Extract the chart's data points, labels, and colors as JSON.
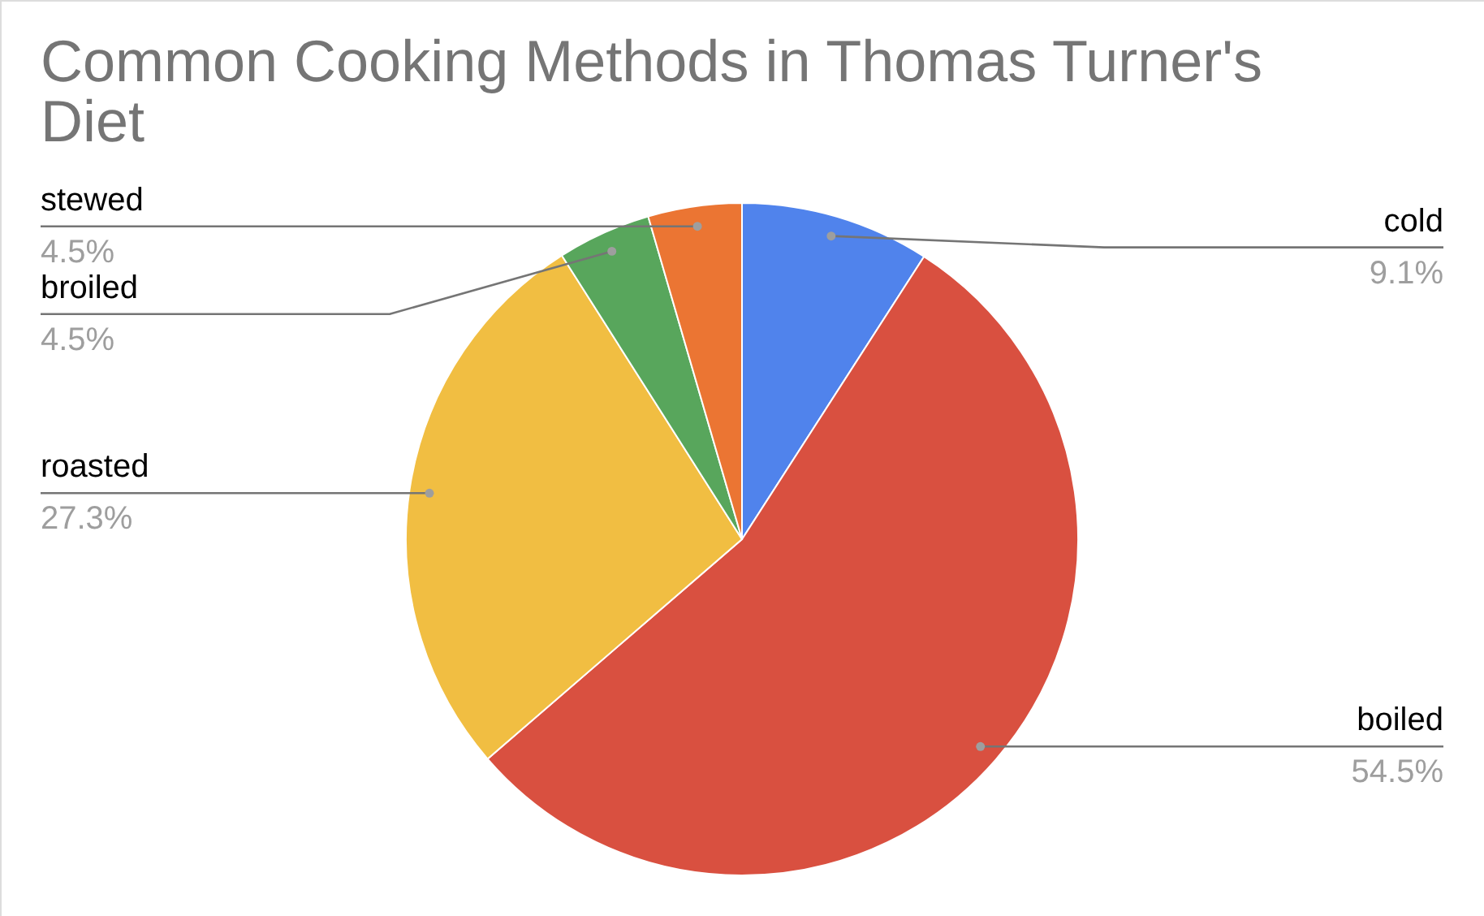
{
  "chart_data": {
    "type": "pie",
    "title": "Common Cooking Methods in Thomas Turner's Diet",
    "categories": [
      "cold",
      "boiled",
      "roasted",
      "broiled",
      "stewed"
    ],
    "values": [
      9.1,
      54.5,
      27.3,
      4.5,
      4.5
    ],
    "colors": [
      "#5083ec",
      "#d95040",
      "#f1be42",
      "#58a65c",
      "#eb7533"
    ],
    "value_labels": [
      "9.1%",
      "54.5%",
      "27.3%",
      "4.5%",
      "4.5%"
    ]
  }
}
